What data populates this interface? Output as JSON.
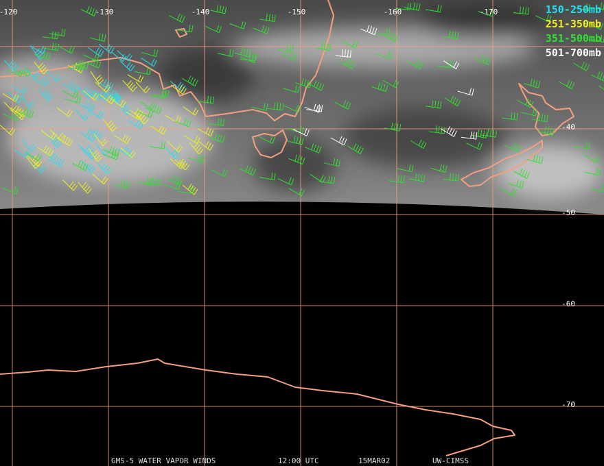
{
  "map": {
    "longitudes": [
      -120,
      -130,
      -140,
      -150,
      -160,
      -170
    ],
    "latitudes": [
      -40,
      -50,
      -60,
      -70
    ],
    "legend": [
      {
        "label": "150-250mb",
        "color": "#22e0f0"
      },
      {
        "label": "251-350mb",
        "color": "#f0f020"
      },
      {
        "label": "351-500mb",
        "color": "#30e030"
      },
      {
        "label": "501-700mb",
        "color": "#ffffff"
      }
    ],
    "footer": [
      "GMS-5 WATER VAPOR WINDS",
      "12:00 UTC",
      "15MAR02",
      "UW-CIMSS"
    ]
  }
}
